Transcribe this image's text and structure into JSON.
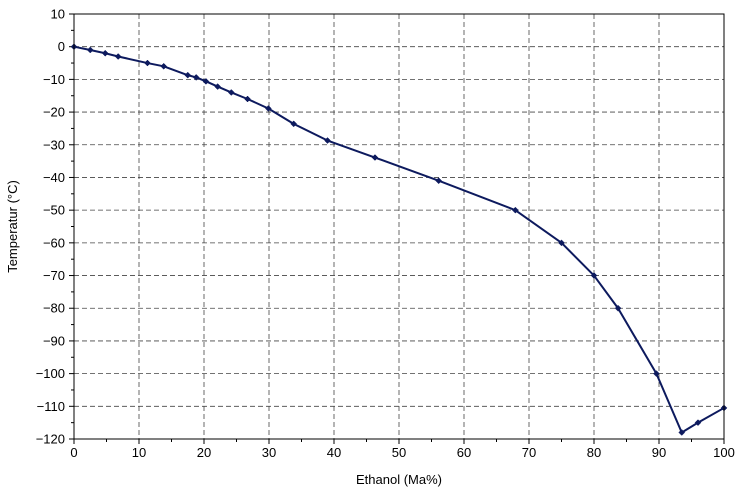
{
  "chart_data": {
    "type": "line",
    "title": "",
    "xlabel": "Ethanol (Ma%)",
    "ylabel": "Temperatur (°C)",
    "xlim": [
      0,
      100
    ],
    "ylim": [
      -120,
      10
    ],
    "x_ticks": [
      0,
      10,
      20,
      30,
      40,
      50,
      60,
      70,
      80,
      90,
      100
    ],
    "y_ticks": [
      10,
      0,
      -10,
      -20,
      -30,
      -40,
      -50,
      -60,
      -70,
      -80,
      -90,
      -100,
      -110,
      -120
    ],
    "x_tick_labels": [
      "0",
      "10",
      "20",
      "30",
      "40",
      "50",
      "60",
      "70",
      "80",
      "90",
      "100"
    ],
    "y_tick_labels": [
      "10",
      "0",
      "−10",
      "−20",
      "−30",
      "−40",
      "−50",
      "−60",
      "−70",
      "−80",
      "−90",
      "−100",
      "−110",
      "−120"
    ],
    "grid": true,
    "grid_style": "dashed",
    "line_color": "#0d1a5e",
    "x": [
      0,
      2.5,
      4.8,
      6.8,
      11.3,
      13.8,
      17.5,
      18.8,
      20.3,
      22.1,
      24.2,
      26.7,
      29.9,
      33.8,
      39.0,
      46.3,
      56.1,
      67.9,
      75.0,
      80.0,
      83.7,
      89.6,
      93.5,
      96.0,
      100.0
    ],
    "y": [
      0,
      -1,
      -2,
      -3,
      -5,
      -6,
      -8.7,
      -9.4,
      -10.6,
      -12.2,
      -14.0,
      -16.0,
      -18.9,
      -23.6,
      -28.7,
      -33.9,
      -41.0,
      -50.0,
      -60.0,
      -70.0,
      -80.0,
      -100.0,
      -118.0,
      -115.0,
      -110.5
    ]
  }
}
